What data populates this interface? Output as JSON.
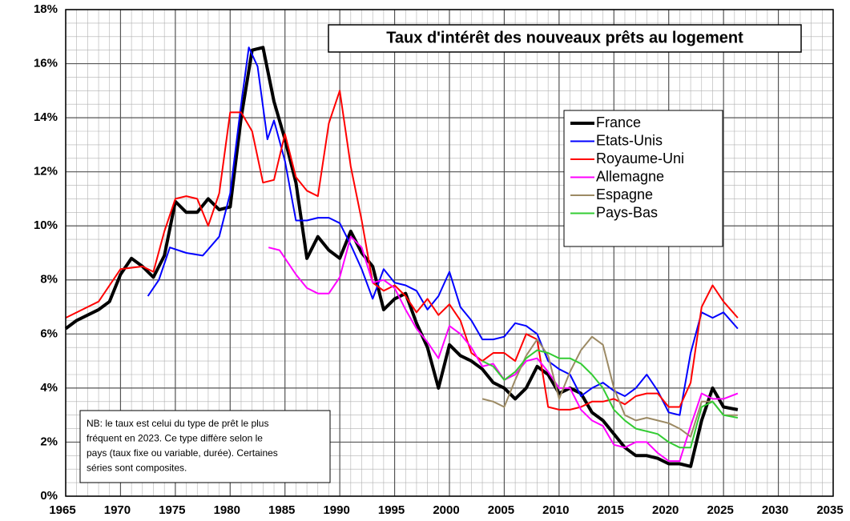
{
  "chart_data": {
    "type": "line",
    "title": "Taux d'intérêt des nouveaux prêts au logement",
    "annotation": [
      "NB: le taux est celui du type de prêt  le plus",
      "fréquent en 2023.  Ce type diffère selon le",
      "pays (taux fixe ou variable, durée).  Certaines",
      "séries sont composites."
    ],
    "xlim": [
      1965,
      2035
    ],
    "xticks": [
      1965,
      1970,
      1975,
      1980,
      1985,
      1990,
      1995,
      2000,
      2005,
      2010,
      2015,
      2020,
      2025,
      2030,
      2035
    ],
    "ylim": [
      0,
      18
    ],
    "yticks": [
      {
        "value": 0,
        "label": "0%"
      },
      {
        "value": 2,
        "label": "2%"
      },
      {
        "value": 4,
        "label": "4%"
      },
      {
        "value": 6,
        "label": "6%"
      },
      {
        "value": 8,
        "label": "8%"
      },
      {
        "value": 10,
        "label": "10%"
      },
      {
        "value": 12,
        "label": "12%"
      },
      {
        "value": 14,
        "label": "14%"
      },
      {
        "value": 16,
        "label": "16%"
      },
      {
        "value": 18,
        "label": "18%"
      }
    ],
    "grid": true,
    "minor_grid": {
      "x": 1,
      "y": 0.5
    },
    "legend": "upper right",
    "series": [
      {
        "name": "France",
        "color": "#000000",
        "width": 4,
        "x": [
          1965,
          1966,
          1967,
          1968,
          1969,
          1970,
          1971,
          1972,
          1973,
          1974,
          1975,
          1976,
          1977,
          1978,
          1979,
          1980,
          1981,
          1982,
          1983,
          1984,
          1985,
          1986,
          1987,
          1988,
          1989,
          1990,
          1991,
          1992,
          1993,
          1994,
          1995,
          1996,
          1997,
          1998,
          1999,
          1999.5,
          2000,
          2001,
          2002,
          2003,
          2004,
          2005,
          2006,
          2007,
          2008,
          2009,
          2010,
          2011,
          2012,
          2013,
          2014,
          2015,
          2016,
          2017,
          2018,
          2019,
          2020,
          2021,
          2022,
          2023,
          2024,
          2025,
          2026.3
        ],
        "values": [
          6.2,
          6.5,
          6.7,
          6.9,
          7.2,
          8.2,
          8.8,
          8.5,
          8.1,
          8.9,
          10.9,
          10.5,
          10.5,
          11.0,
          10.6,
          10.7,
          14.0,
          16.5,
          16.6,
          14.6,
          13.2,
          11.6,
          8.8,
          9.6,
          9.1,
          8.8,
          9.8,
          9.0,
          8.5,
          6.9,
          7.3,
          7.5,
          6.4,
          5.5,
          4.0,
          4.8,
          5.6,
          5.2,
          5.0,
          4.7,
          4.2,
          4.0,
          3.6,
          4.0,
          4.8,
          4.5,
          3.8,
          4.0,
          3.8,
          3.1,
          2.8,
          2.3,
          1.8,
          1.5,
          1.5,
          1.4,
          1.2,
          1.2,
          1.1,
          2.8,
          4.0,
          3.3,
          3.2
        ]
      },
      {
        "name": "Etats-Unis",
        "color": "#0000ff",
        "width": 2,
        "x": [
          1972.5,
          1973.5,
          1974.5,
          1976,
          1977.5,
          1979,
          1980,
          1981,
          1981.7,
          1982.5,
          1983.4,
          1984,
          1985,
          1986,
          1987,
          1988,
          1989,
          1990,
          1991,
          1992,
          1993,
          1994,
          1995,
          1996,
          1997,
          1998,
          1999,
          2000,
          2001,
          2002,
          2003,
          2004,
          2005,
          2006,
          2007,
          2008,
          2009,
          2010,
          2011,
          2012,
          2013,
          2014,
          2015,
          2016,
          2017,
          2018,
          2019,
          2020,
          2021,
          2022,
          2023,
          2024,
          2025,
          2026.3
        ],
        "values": [
          7.4,
          8.0,
          9.2,
          9.0,
          8.9,
          9.6,
          11.2,
          14.5,
          16.6,
          15.9,
          13.2,
          13.9,
          12.4,
          10.2,
          10.2,
          10.3,
          10.3,
          10.1,
          9.3,
          8.4,
          7.3,
          8.4,
          7.9,
          7.8,
          7.6,
          6.9,
          7.4,
          8.3,
          7.0,
          6.5,
          5.8,
          5.8,
          5.9,
          6.4,
          6.3,
          6.0,
          5.0,
          4.7,
          4.5,
          3.7,
          4.0,
          4.2,
          3.9,
          3.7,
          4.0,
          4.5,
          3.9,
          3.1,
          3.0,
          5.3,
          6.8,
          6.6,
          6.8,
          6.2
        ]
      },
      {
        "name": "Royaume-Uni",
        "color": "#ff0000",
        "width": 2,
        "x": [
          1965,
          1968,
          1970,
          1972,
          1973,
          1974,
          1975,
          1976,
          1977,
          1978,
          1979,
          1980,
          1981,
          1982,
          1983,
          1984,
          1985,
          1986,
          1987,
          1988,
          1989,
          1990,
          1991,
          1992,
          1993,
          1994,
          1995,
          1996,
          1997,
          1998,
          1999,
          2000,
          2001,
          2002,
          2003,
          2004,
          2005,
          2006,
          2007,
          2008,
          2009,
          2010,
          2011,
          2012,
          2013,
          2014,
          2015,
          2016,
          2017,
          2018,
          2019,
          2020,
          2021,
          2022,
          2023,
          2024,
          2025,
          2026.3
        ],
        "values": [
          6.6,
          7.2,
          8.4,
          8.5,
          8.3,
          9.8,
          11.0,
          11.1,
          11.0,
          10.0,
          11.2,
          14.2,
          14.2,
          13.5,
          11.6,
          11.7,
          13.4,
          11.8,
          11.3,
          11.1,
          13.8,
          15.0,
          12.2,
          10.2,
          7.9,
          7.6,
          7.8,
          7.4,
          6.8,
          7.3,
          6.7,
          7.1,
          6.5,
          5.3,
          5.0,
          5.3,
          5.3,
          5.0,
          6.0,
          5.8,
          3.3,
          3.2,
          3.2,
          3.3,
          3.5,
          3.5,
          3.6,
          3.4,
          3.7,
          3.8,
          3.8,
          3.3,
          3.3,
          4.2,
          7.0,
          7.8,
          7.2,
          6.6
        ]
      },
      {
        "name": "Allemagne",
        "color": "#ff00ff",
        "width": 2,
        "x": [
          1983.5,
          1984.5,
          1986,
          1987,
          1988,
          1989,
          1990,
          1991,
          1992,
          1993,
          1994,
          1995,
          1996,
          1997,
          1998,
          1999,
          2000,
          2001,
          2002,
          2003,
          2004,
          2005,
          2006,
          2007,
          2008,
          2009,
          2010,
          2011,
          2012,
          2013,
          2014,
          2015,
          2016,
          2017,
          2018,
          2019,
          2020,
          2021,
          2022,
          2023,
          2024,
          2025,
          2026.3
        ],
        "values": [
          9.2,
          9.1,
          8.2,
          7.7,
          7.5,
          7.5,
          8.1,
          9.6,
          9.2,
          7.9,
          8.0,
          7.7,
          6.9,
          6.2,
          5.7,
          5.1,
          6.3,
          6.0,
          5.5,
          4.8,
          4.9,
          4.3,
          4.5,
          5.0,
          5.1,
          4.6,
          4.0,
          4.0,
          3.2,
          2.8,
          2.6,
          1.9,
          1.8,
          2.0,
          2.0,
          1.6,
          1.3,
          1.3,
          2.6,
          3.8,
          3.6,
          3.6,
          3.8
        ]
      },
      {
        "name": "Espagne",
        "color": "#9c8a64",
        "width": 2,
        "x": [
          2003,
          2004,
          2005,
          2006,
          2007,
          2008,
          2009,
          2010,
          2011,
          2012,
          2013,
          2014,
          2015,
          2016,
          2017,
          2018,
          2019,
          2020,
          2021,
          2022,
          2023,
          2024,
          2025,
          2026.3
        ],
        "values": [
          3.6,
          3.5,
          3.3,
          4.3,
          5.2,
          5.8,
          5.2,
          3.6,
          4.6,
          5.4,
          5.9,
          5.6,
          4.0,
          3.0,
          2.8,
          2.9,
          2.8,
          2.7,
          2.5,
          2.2,
          3.5,
          3.5,
          3.0,
          3.0
        ]
      },
      {
        "name": "Pays-Bas",
        "color": "#33cc33",
        "width": 2,
        "x": [
          2003,
          2004,
          2005,
          2006,
          2007,
          2008,
          2009,
          2010,
          2011,
          2012,
          2013,
          2014,
          2015,
          2016,
          2017,
          2018,
          2019,
          2020,
          2021,
          2022,
          2023,
          2024,
          2025,
          2026.3
        ],
        "values": [
          5.0,
          4.8,
          4.3,
          4.6,
          5.1,
          5.4,
          5.3,
          5.1,
          5.1,
          4.9,
          4.5,
          4.0,
          3.2,
          2.8,
          2.5,
          2.4,
          2.3,
          2.0,
          1.8,
          1.8,
          3.3,
          3.5,
          3.0,
          2.9
        ]
      }
    ]
  }
}
